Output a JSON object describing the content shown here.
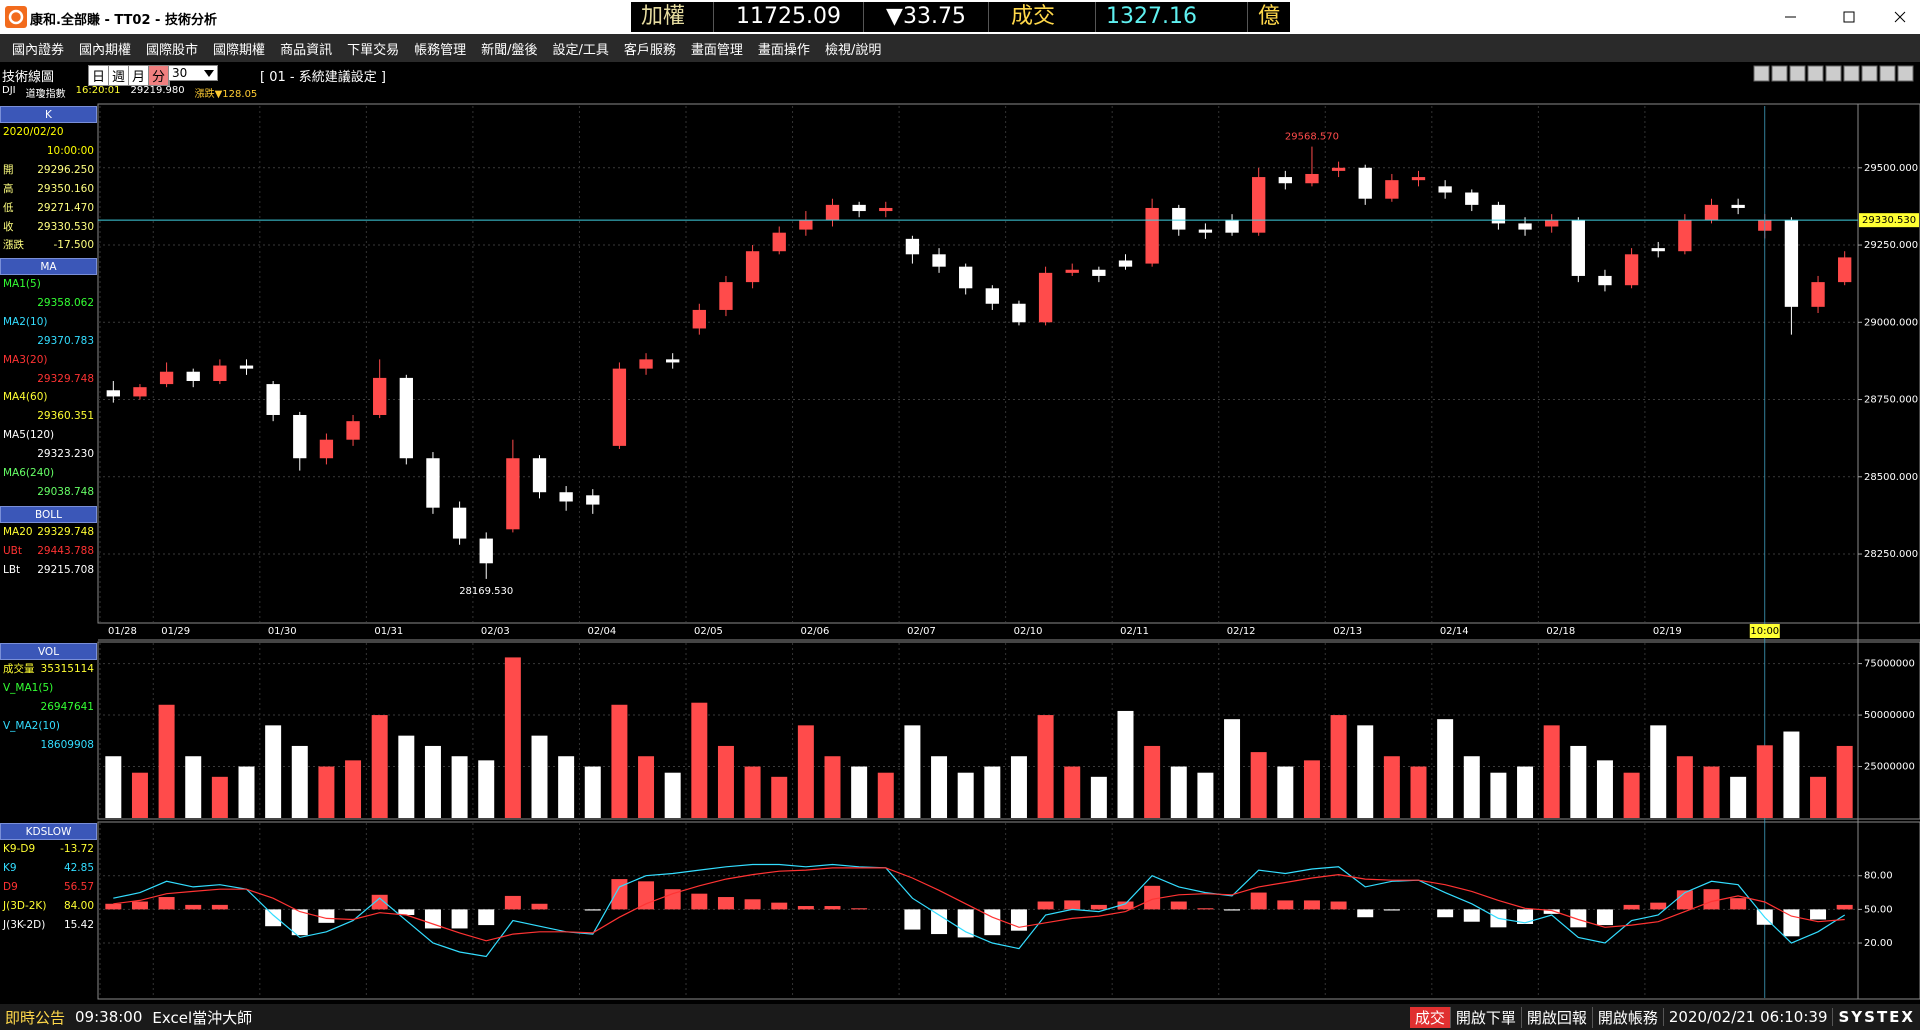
{
  "window": {
    "title": "康和.全部賺 - TT02 - 技術分析"
  },
  "ticker": {
    "index_name": "加權指數",
    "index_value": "11725.09",
    "index_change": "▼33.75",
    "turnover_name": "成交金額",
    "turnover_value": "1327.16",
    "turnover_unit": "億"
  },
  "menu": [
    "國內證券",
    "國內期權",
    "國際股市",
    "國際期權",
    "商品資訊",
    "下單交易",
    "帳務管理",
    "新聞/盤後",
    "設定/工具",
    "客戶服務",
    "畫面管理",
    "畫面操作",
    "檢視/說明"
  ],
  "toolbar": {
    "title": "技術線圖",
    "periods": [
      "日",
      "週",
      "月",
      "分"
    ],
    "period_count": "30",
    "setting": "[ 01 - 系統建議設定 ]"
  },
  "quote_line": {
    "symbol": "DJI",
    "name": "道瓊指數",
    "time": "16:20:01",
    "price": "29219.980",
    "change": "漲跌▼128.05"
  },
  "info_panel": [
    {
      "title": "K",
      "rows": [
        {
          "label": "2020/02/20",
          "color": "#ffff00"
        },
        {
          "value": "10:00:00",
          "color": "#ffff00"
        },
        {
          "label": "開",
          "value": "29296.250",
          "color": "#ffff80"
        },
        {
          "label": "高",
          "value": "29350.160",
          "color": "#ffff80"
        },
        {
          "label": "低",
          "value": "29271.470",
          "color": "#ffff80"
        },
        {
          "label": "收",
          "value": "29330.530",
          "color": "#ffff80"
        },
        {
          "label": "漲跌",
          "value": "-17.500",
          "color": "#ffff80"
        }
      ]
    },
    {
      "title": "MA",
      "rows": [
        {
          "label": "MA1(5)",
          "value": "29358.062",
          "color": "#33ff33"
        },
        {
          "label": "MA2(10)",
          "value": "29370.783",
          "color": "#33ddff"
        },
        {
          "label": "MA3(20)",
          "value": "29329.748",
          "color": "#ff3333"
        },
        {
          "label": "MA4(60)",
          "value": "29360.351",
          "color": "#ffff33"
        },
        {
          "label": "MA5(120)",
          "value": "29323.230",
          "color": "#ffffff"
        },
        {
          "label": "MA6(240)",
          "value": "29038.748",
          "color": "#66ff66"
        }
      ]
    },
    {
      "title": "BOLL",
      "rows": [
        {
          "label": "MA20",
          "value": "29329.748",
          "color": "#ffff33"
        },
        {
          "label": "UBt",
          "value": "29443.788",
          "color": "#ff3333"
        },
        {
          "label": "LBt",
          "value": "29215.708",
          "color": "#ffffff"
        }
      ]
    },
    {
      "title": "VOL",
      "rows": [
        {
          "label": "成交量",
          "value": "35315114",
          "color": "#ffff33"
        },
        {
          "label": "V_MA1(5)",
          "value": "26947641",
          "color": "#33ff33"
        },
        {
          "label": "V_MA2(10)",
          "value": "18609908",
          "color": "#33ddff"
        }
      ]
    },
    {
      "title": "KDSLOW",
      "rows": [
        {
          "label": "K9-D9",
          "value": "-13.72",
          "color": "#ffff33"
        },
        {
          "label": "K9",
          "value": "42.85",
          "color": "#33ddff"
        },
        {
          "label": "D9",
          "value": "56.57",
          "color": "#ff3333"
        },
        {
          "label": "J(3D-2K)",
          "value": "84.00",
          "color": "#ffff33"
        },
        {
          "label": "J(3K-2D)",
          "value": "15.42",
          "color": "#ffffff"
        }
      ]
    }
  ],
  "chart_data": [
    {
      "type": "candlestick",
      "categories": [
        "01/28",
        null,
        "01/29",
        null,
        null,
        null,
        "01/30",
        null,
        null,
        null,
        "01/31",
        null,
        null,
        null,
        "02/03",
        null,
        null,
        null,
        "02/04",
        null,
        null,
        null,
        "02/05",
        null,
        null,
        null,
        "02/06",
        null,
        null,
        null,
        "02/07",
        null,
        null,
        null,
        "02/10",
        null,
        null,
        null,
        "02/11",
        null,
        null,
        null,
        "02/12",
        null,
        null,
        null,
        "02/13",
        null,
        null,
        null,
        "02/14",
        null,
        null,
        null,
        "02/18",
        null,
        null,
        null,
        "02/19",
        null,
        null,
        null,
        null,
        null,
        null,
        null
      ],
      "open": [
        28780,
        28760,
        28800,
        28840,
        28810,
        28860,
        28800,
        28700,
        28560,
        28620,
        28700,
        28820,
        28560,
        28400,
        28300,
        28330,
        28560,
        28450,
        28440,
        28600,
        28850,
        28880,
        28980,
        29040,
        29130,
        29230,
        29300,
        29330,
        29380,
        29360,
        29270,
        29220,
        29180,
        29110,
        29060,
        29000,
        29160,
        29170,
        29200,
        29190,
        29370,
        29300,
        29330,
        29290,
        29470,
        29450,
        29490,
        29500,
        29400,
        29460,
        29440,
        29420,
        29380,
        29320,
        29310,
        29330,
        29150,
        29120,
        29240,
        29230,
        29330,
        29380,
        29296.25,
        29330,
        29050,
        29130
      ],
      "high": [
        28810,
        28800,
        28870,
        28850,
        28880,
        28880,
        28810,
        28710,
        28640,
        28700,
        28880,
        28830,
        28580,
        28420,
        28320,
        28620,
        28570,
        28470,
        28460,
        28870,
        28900,
        28900,
        29060,
        29150,
        29250,
        29310,
        29360,
        29400,
        29390,
        29390,
        29280,
        29240,
        29190,
        29120,
        29070,
        29180,
        29190,
        29180,
        29220,
        29400,
        29380,
        29320,
        29350,
        29500,
        29490,
        29568.57,
        29520,
        29510,
        29480,
        29490,
        29460,
        29430,
        29390,
        29340,
        29350,
        29340,
        29170,
        29240,
        29260,
        29350,
        29400,
        29400,
        29350.16,
        29340,
        29150,
        29230
      ],
      "low": [
        28740,
        28750,
        28790,
        28790,
        28800,
        28830,
        28680,
        28520,
        28540,
        28600,
        28690,
        28540,
        28380,
        28280,
        28169.53,
        28320,
        28430,
        28390,
        28380,
        28590,
        28830,
        28850,
        28960,
        29020,
        29110,
        29220,
        29280,
        29310,
        29340,
        29340,
        29190,
        29160,
        29090,
        29040,
        28990,
        28990,
        29150,
        29130,
        29170,
        29180,
        29280,
        29270,
        29280,
        29280,
        29430,
        29440,
        29470,
        29380,
        29390,
        29440,
        29400,
        29360,
        29300,
        29280,
        29290,
        29130,
        29100,
        29110,
        29210,
        29220,
        29320,
        29350,
        29271.47,
        28960,
        29030,
        29120
      ],
      "close": [
        28760,
        28790,
        28840,
        28810,
        28860,
        28850,
        28700,
        28560,
        28620,
        28680,
        28820,
        28560,
        28400,
        28300,
        28220,
        28560,
        28450,
        28420,
        28410,
        28850,
        28880,
        28870,
        29040,
        29130,
        29230,
        29290,
        29330,
        29380,
        29360,
        29370,
        29220,
        29180,
        29110,
        29060,
        29000,
        29160,
        29170,
        29150,
        29180,
        29370,
        29300,
        29290,
        29290,
        29470,
        29450,
        29480,
        29500,
        29400,
        29460,
        29470,
        29420,
        29380,
        29320,
        29300,
        29330,
        29150,
        29120,
        29220,
        29230,
        29330,
        29380,
        29370,
        29330.53,
        29050,
        29130,
        29210
      ],
      "up_color": "#ff4b4b",
      "down_color": "#ffffff",
      "ylim": [
        28030,
        29700
      ],
      "yticks": [
        {
          "value": 28250,
          "label": "28250.000"
        },
        {
          "value": 28500,
          "label": "28500.000"
        },
        {
          "value": 28750,
          "label": "28750.000"
        },
        {
          "value": 29000,
          "label": "29000.000"
        },
        {
          "value": 29250,
          "label": "29250.000"
        },
        {
          "value": 29500,
          "label": "29500.000"
        }
      ],
      "grid": true,
      "last_price": {
        "value": 29330.53,
        "label": "29330.530"
      },
      "annotations": [
        {
          "value": 29568.57,
          "label": "29568.570"
        },
        {
          "value": 28169.53,
          "label": "28169.530"
        }
      ],
      "crosshair_label": "10:00"
    },
    {
      "type": "bar",
      "values": [
        30000000,
        22000000,
        55000000,
        30000000,
        20000000,
        25000000,
        45000000,
        35000000,
        25000000,
        28000000,
        50000000,
        40000000,
        35000000,
        30000000,
        28000000,
        78000000,
        40000000,
        30000000,
        25000000,
        55000000,
        30000000,
        22000000,
        56000000,
        35000000,
        25000000,
        20000000,
        45000000,
        30000000,
        25000000,
        22000000,
        45000000,
        30000000,
        22000000,
        25000000,
        30000000,
        50000000,
        25000000,
        20000000,
        52000000,
        35000000,
        25000000,
        22000000,
        48000000,
        32000000,
        25000000,
        28000000,
        50000000,
        45000000,
        30000000,
        25000000,
        48000000,
        30000000,
        22000000,
        25000000,
        45000000,
        35000000,
        28000000,
        22000000,
        45000000,
        30000000,
        25000000,
        20000000,
        35315114,
        42000000,
        20000000,
        35000000
      ],
      "ylim": [
        0,
        85000000
      ],
      "yticks": [
        25000000,
        50000000,
        75000000
      ],
      "grid": true
    },
    {
      "type": "line",
      "series": [
        {
          "color": "#33ddff",
          "values": [
            60,
            65,
            75,
            70,
            72,
            68,
            45,
            25,
            30,
            40,
            60,
            40,
            20,
            12,
            8,
            40,
            35,
            30,
            28,
            70,
            80,
            82,
            85,
            88,
            90,
            90,
            88,
            90,
            88,
            87,
            60,
            45,
            30,
            20,
            15,
            45,
            50,
            48,
            55,
            80,
            70,
            65,
            62,
            85,
            82,
            86,
            88,
            70,
            75,
            76,
            65,
            55,
            42,
            38,
            45,
            25,
            20,
            40,
            45,
            65,
            75,
            72,
            42.85,
            20,
            30,
            45
          ]
        },
        {
          "color": "#ff3333",
          "values": [
            55,
            58,
            64,
            66,
            68,
            68,
            60,
            48,
            42,
            41,
            47,
            45,
            37,
            29,
            22,
            28,
            30,
            30,
            29,
            43,
            55,
            64,
            71,
            77,
            81,
            84,
            85,
            87,
            87,
            87,
            78,
            67,
            55,
            43,
            34,
            38,
            42,
            44,
            48,
            59,
            63,
            64,
            63,
            70,
            74,
            78,
            81,
            77,
            76,
            76,
            72,
            66,
            58,
            51,
            49,
            41,
            34,
            36,
            39,
            48,
            57,
            62,
            56.57,
            44,
            39,
            41
          ]
        }
      ],
      "bars": {
        "up_color": "#ff4b4b",
        "down_color": "#ffffff",
        "values": [
          5,
          7,
          11,
          4,
          4,
          0,
          -15,
          -23,
          -12,
          -1,
          13,
          -5,
          -17,
          -17,
          -14,
          12,
          5,
          0,
          -1,
          27,
          25,
          18,
          14,
          11,
          9,
          6,
          3,
          3,
          1,
          0,
          -18,
          -22,
          -25,
          -23,
          -19,
          7,
          8,
          4,
          7,
          21,
          7,
          1,
          -1,
          15,
          8,
          8,
          7,
          -7,
          -1,
          0,
          -7,
          -11,
          -16,
          -13,
          -4,
          -16,
          -14,
          4,
          6,
          17,
          18,
          10,
          -13.72,
          -24,
          -9,
          4
        ]
      },
      "ylim": [
        -29,
        127
      ],
      "yticks": [
        {
          "value": 20,
          "label": "20.00"
        },
        {
          "value": 50,
          "label": "50.00"
        },
        {
          "value": 80,
          "label": "80.00"
        }
      ],
      "grid": true
    }
  ],
  "status_bar": {
    "left": [
      "即時公告",
      "09:38:00",
      "Excel當沖大師"
    ],
    "right": [
      "成交",
      "開啟下單",
      "開啟回報",
      "開啟帳務",
      "2020/02/21 06:10:39",
      "SYSTEX"
    ]
  }
}
